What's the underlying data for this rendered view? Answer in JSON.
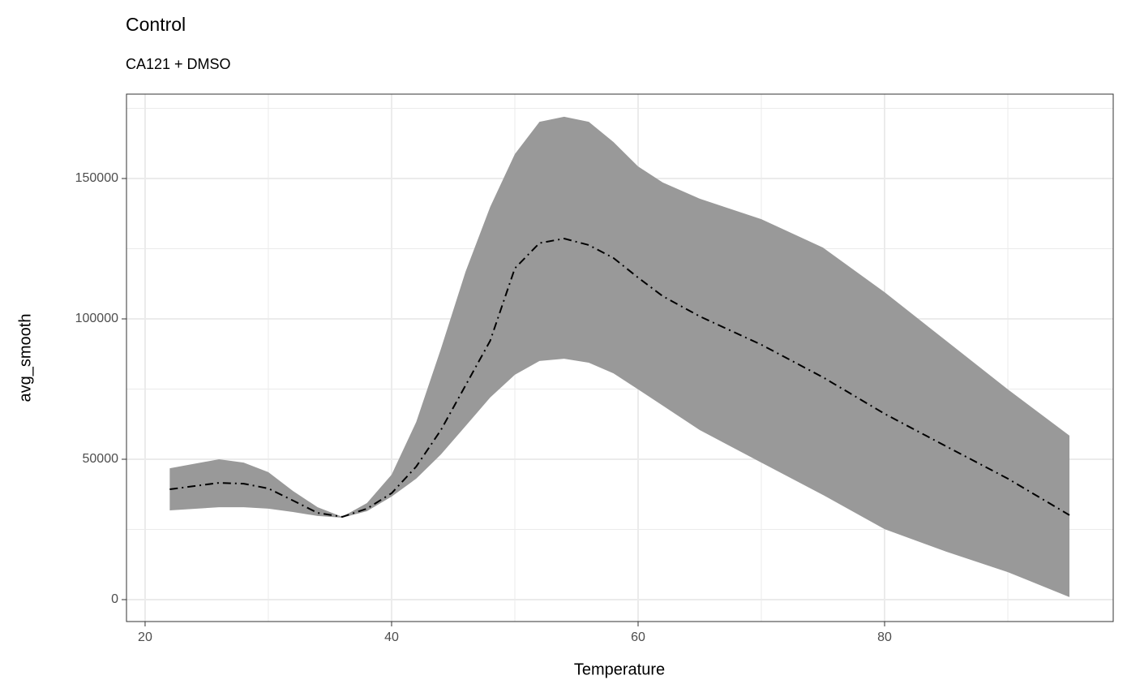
{
  "chart_data": {
    "type": "ribbon_line",
    "title": "Control",
    "subtitle": "CA121 + DMSO",
    "x_label": "Temperature",
    "y_label": "avg_smooth",
    "x": [
      22,
      26,
      28,
      30,
      32,
      34,
      36,
      38,
      40,
      42,
      44,
      46,
      48,
      50,
      52,
      54,
      56,
      58,
      60,
      62,
      65,
      70,
      75,
      80,
      85,
      90,
      95
    ],
    "values": [
      39300,
      41600,
      41300,
      39600,
      35300,
      30900,
      29500,
      32400,
      37900,
      47400,
      60400,
      76300,
      92200,
      118000,
      127000,
      128600,
      126300,
      121700,
      114700,
      108100,
      100900,
      90800,
      79200,
      66200,
      54600,
      43100,
      30100
    ],
    "upper": [
      46800,
      50000,
      48800,
      45400,
      38700,
      32900,
      29500,
      34400,
      44500,
      63300,
      89300,
      116800,
      139900,
      158700,
      170200,
      172000,
      170200,
      163000,
      154300,
      148600,
      142800,
      135500,
      125400,
      109500,
      92200,
      74900,
      58400
    ],
    "lower": [
      31800,
      32900,
      32900,
      32400,
      31200,
      29800,
      29200,
      31500,
      36700,
      43100,
      51700,
      61800,
      72000,
      80100,
      85000,
      85800,
      84400,
      80600,
      74900,
      69100,
      60400,
      48800,
      37300,
      25100,
      17100,
      9800,
      900
    ],
    "color": "#000000",
    "ribbon_color": "#999999",
    "xlim": [
      18.49,
      98.55
    ],
    "ylim": [
      -7803,
      180058
    ],
    "xticks": [
      20,
      40,
      60,
      80
    ],
    "yticks": [
      0,
      50000,
      100000,
      150000
    ],
    "xminor_ticks": [
      30,
      50,
      70,
      90
    ],
    "yminor_ticks": [
      25000,
      75000,
      125000,
      175000
    ],
    "grid": true
  }
}
